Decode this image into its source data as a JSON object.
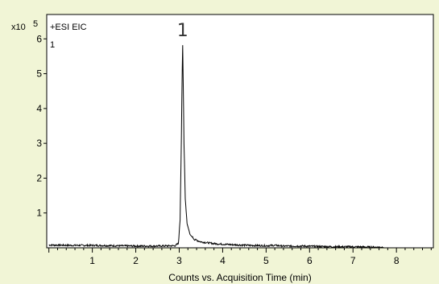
{
  "chart_data": {
    "type": "line",
    "series_label": "+ESI EIC",
    "trace_index": "1",
    "y_multiplier_base": "x10",
    "y_multiplier_exp": "5",
    "xlabel": "Counts vs. Acquisition Time (min)",
    "xlim": [
      -0.05,
      8.85
    ],
    "ylim": [
      0,
      6.7
    ],
    "x_ticks": [
      1,
      2,
      3,
      4,
      5,
      6,
      7,
      8
    ],
    "y_ticks": [
      1,
      2,
      3,
      4,
      5,
      6
    ],
    "grid": false,
    "annotations": [
      {
        "label": "1",
        "x": 3.08,
        "y": 5.85
      }
    ],
    "series": [
      {
        "color": "#000000",
        "x": [
          0,
          0.5,
          1.0,
          1.5,
          2.0,
          2.5,
          2.9,
          2.98,
          3.02,
          3.05,
          3.07,
          3.08,
          3.09,
          3.11,
          3.14,
          3.18,
          3.25,
          3.35,
          3.5,
          3.8,
          4.2,
          4.6,
          5.0,
          5.2,
          5.4,
          5.8,
          6.2,
          6.6,
          7.0,
          7.4,
          7.7
        ],
        "y": [
          0.08,
          0.07,
          0.07,
          0.06,
          0.05,
          0.05,
          0.06,
          0.12,
          0.8,
          3.2,
          5.2,
          5.82,
          5.0,
          3.0,
          1.4,
          0.7,
          0.38,
          0.24,
          0.17,
          0.12,
          0.09,
          0.07,
          0.06,
          0.07,
          0.05,
          0.05,
          0.04,
          0.03,
          0.03,
          0.02,
          0.02
        ]
      }
    ]
  }
}
